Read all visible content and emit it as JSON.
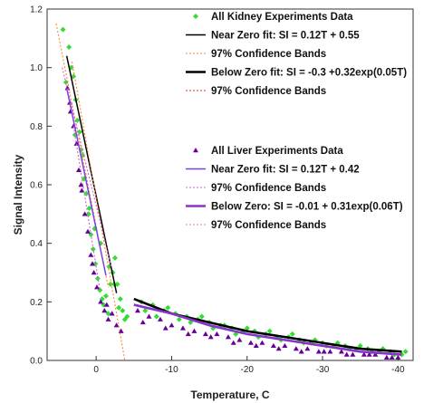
{
  "chart_data": {
    "type": "scatter",
    "title": "",
    "xlabel": "Temperature, C",
    "ylabel": "Signal Intensity",
    "x_axis_reversed": true,
    "xlim": [
      6.5,
      -42
    ],
    "ylim": [
      0,
      1.2
    ],
    "x_ticks": [
      0,
      -10,
      -20,
      -30,
      -40
    ],
    "x_tick_labels": [
      "0",
      "-10",
      "-20",
      "-30",
      "-40"
    ],
    "y_ticks": [
      0,
      0.2,
      0.4,
      0.6,
      0.8,
      1.0,
      1.2
    ],
    "y_tick_labels": [
      "0.0",
      "0.2",
      "0.4",
      "0.6",
      "0.8",
      "1.0",
      "1.2"
    ],
    "grid": false,
    "legend_placement": "top-right",
    "legend_groups": [
      {
        "entries": [
          {
            "label": "All Kidney Experiments Data",
            "style": "marker",
            "marker": "diamond",
            "color": "#33dd33"
          },
          {
            "label": "Near Zero fit: SI = 0.12T + 0.55",
            "style": "solid",
            "color": "#000000"
          },
          {
            "label": "97% Confidence Bands",
            "style": "dotted",
            "color": "#ff8833"
          },
          {
            "label": "Below Zero fit: SI = -0.3 +0.32exp(0.05T)",
            "style": "solid-thick",
            "color": "#000000"
          },
          {
            "label": "97% Confidence Bands",
            "style": "dotted",
            "color": "#e03030"
          }
        ]
      },
      {
        "entries": [
          {
            "label": "All Liver Experiments Data",
            "style": "marker",
            "marker": "triangle",
            "color": "#660099"
          },
          {
            "label": "Near Zero fit: SI = 0.12T + 0.42",
            "style": "solid",
            "color": "#7744dd"
          },
          {
            "label": "97% Confidence Bands",
            "style": "dotted",
            "color": "#cc66cc"
          },
          {
            "label": "Below Zero: SI = -0.01 + 0.31exp(0.06T)",
            "style": "solid-thick",
            "color": "#8833cc"
          },
          {
            "label": "97% Confidence Bands",
            "style": "dotted",
            "color": "#dd88aa"
          }
        ]
      }
    ],
    "series": [
      {
        "name": "All Kidney Experiments Data",
        "kind": "scatter",
        "marker": "diamond",
        "color": "#33dd33",
        "x": [
          4.4,
          3.6,
          3.3,
          3.0,
          2.7,
          2.5,
          2.2,
          2.0,
          1.6,
          1.3,
          1.0,
          0.7,
          0.4,
          0.1,
          -0.2,
          -0.5,
          -0.8,
          -1.0,
          -1.3,
          -1.6,
          -1.9,
          -2.2,
          -2.5,
          -2.8,
          -3.2,
          -3.5,
          -4.1,
          4.0,
          2.8,
          1.8,
          0.9,
          0.2,
          -0.6,
          -1.7,
          -2.4,
          -3.0,
          -3.8,
          -6.0,
          -7.5,
          -9.0,
          -10.5,
          -12.0,
          -13.5,
          -15.0,
          -16.5,
          -18.0,
          -19.5,
          -21.0,
          -22.5,
          -24.0,
          -25.5,
          -27.0,
          -28.5,
          -30.0,
          -31.5,
          -33.0,
          -34.5,
          -36.0,
          -37.5,
          -39.0,
          -40.5,
          -6.5,
          -8.0,
          -9.5,
          -11.0,
          -12.5,
          -14.0,
          -15.5,
          -17.0,
          -18.5,
          -20.0,
          -21.5,
          -23.0,
          -24.5,
          -26.0,
          -27.5,
          -29.0,
          -30.5,
          -32.0,
          -33.5,
          -35.0,
          -36.5,
          -38.0,
          -39.5,
          -41.0
        ],
        "y": [
          1.13,
          1.07,
          1.0,
          0.97,
          0.89,
          0.82,
          0.78,
          0.72,
          0.62,
          0.57,
          0.5,
          0.43,
          0.38,
          0.33,
          0.28,
          0.24,
          0.21,
          0.19,
          0.22,
          0.16,
          0.26,
          0.3,
          0.35,
          0.26,
          0.21,
          0.17,
          0.15,
          0.95,
          0.77,
          0.7,
          0.52,
          0.45,
          0.4,
          0.32,
          0.26,
          0.18,
          0.14,
          0.2,
          0.19,
          0.17,
          0.16,
          0.15,
          0.14,
          0.13,
          0.12,
          0.11,
          0.1,
          0.1,
          0.09,
          0.08,
          0.08,
          0.07,
          0.06,
          0.06,
          0.05,
          0.05,
          0.04,
          0.04,
          0.03,
          0.03,
          0.02,
          0.17,
          0.15,
          0.18,
          0.14,
          0.13,
          0.15,
          0.11,
          0.12,
          0.09,
          0.11,
          0.08,
          0.1,
          0.07,
          0.09,
          0.06,
          0.07,
          0.05,
          0.06,
          0.04,
          0.05,
          0.03,
          0.04,
          0.02,
          0.03
        ]
      },
      {
        "name": "All Liver Experiments Data",
        "kind": "scatter",
        "marker": "triangle",
        "color": "#660099",
        "x": [
          3.8,
          3.4,
          3.0,
          2.6,
          2.3,
          1.9,
          1.5,
          1.1,
          0.7,
          0.3,
          -0.1,
          -0.6,
          -1.1,
          -1.6,
          -2.1,
          -2.7,
          -3.3,
          3.5,
          2.0,
          0.5,
          -1.4,
          -5.5,
          -7.0,
          -8.5,
          -10.0,
          -11.5,
          -13.0,
          -14.5,
          -16.0,
          -17.5,
          -19.0,
          -20.5,
          -22.0,
          -23.5,
          -25.0,
          -26.5,
          -28.0,
          -29.5,
          -31.0,
          -32.5,
          -34.0,
          -35.5,
          -37.0,
          -38.5,
          -40.0,
          -6.2,
          -9.2,
          -12.2,
          -15.2,
          -18.2,
          -21.2,
          -24.2,
          -27.2,
          -30.2,
          -33.2,
          -36.2,
          -39.2
        ],
        "y": [
          0.93,
          0.85,
          0.8,
          0.74,
          0.65,
          0.58,
          0.5,
          0.44,
          0.36,
          0.3,
          0.25,
          0.2,
          0.17,
          0.14,
          0.16,
          0.12,
          0.1,
          0.88,
          0.6,
          0.33,
          0.19,
          0.17,
          0.15,
          0.14,
          0.12,
          0.11,
          0.1,
          0.09,
          0.09,
          0.08,
          0.07,
          0.06,
          0.06,
          0.05,
          0.05,
          0.04,
          0.04,
          0.03,
          0.03,
          0.03,
          0.02,
          0.02,
          0.02,
          0.01,
          0.01,
          0.13,
          0.11,
          0.09,
          0.08,
          0.06,
          0.05,
          0.04,
          0.03,
          0.03,
          0.02,
          0.02,
          0.01
        ]
      },
      {
        "name": "Near Zero fit: SI = 0.12T + 0.55",
        "kind": "line",
        "style": "solid",
        "color": "#000000",
        "x": [
          3.9,
          -2.7
        ],
        "y": [
          1.04,
          0.23
        ]
      },
      {
        "name": "97% Confidence Bands",
        "kind": "line",
        "style": "dotted",
        "color": "#ff8833",
        "x": [
          5.3,
          -1.6
        ],
        "y": [
          1.15,
          0.25
        ]
      },
      {
        "name": "97% Confidence Bands",
        "kind": "line",
        "style": "dotted",
        "color": "#ff8833",
        "x": [
          3.2,
          -3.8
        ],
        "y": [
          1.02,
          0.0
        ]
      },
      {
        "name": "Below Zero fit: SI = -0.3 +0.32exp(0.05T)",
        "kind": "line",
        "style": "solid-thick",
        "color": "#000000",
        "x": [
          -5,
          -10,
          -15,
          -20,
          -25,
          -30,
          -35,
          -40.5
        ],
        "y": [
          0.21,
          0.16,
          0.13,
          0.1,
          0.08,
          0.06,
          0.04,
          0.03
        ]
      },
      {
        "name": "Near Zero fit: SI = 0.12T + 0.42",
        "kind": "line",
        "style": "solid",
        "color": "#7744dd",
        "x": [
          3.9,
          -1.3
        ],
        "y": [
          0.93,
          0.29
        ]
      },
      {
        "name": "97% Confidence Bands",
        "kind": "line",
        "style": "dotted",
        "color": "#cc66cc",
        "x": [
          3.0,
          -0.5
        ],
        "y": [
          0.8,
          0.24
        ]
      },
      {
        "name": "97% Confidence Bands",
        "kind": "line",
        "style": "dotted",
        "color": "#cc66cc",
        "x": [
          4.5,
          -2.0
        ],
        "y": [
          1.0,
          0.32
        ]
      },
      {
        "name": "Below Zero: SI = -0.01 + 0.31exp(0.06T)",
        "kind": "line",
        "style": "solid-thick",
        "color": "#8833cc",
        "x": [
          -5,
          -10,
          -15,
          -20,
          -25,
          -30,
          -35,
          -40.5
        ],
        "y": [
          0.19,
          0.16,
          0.12,
          0.09,
          0.07,
          0.05,
          0.03,
          0.02
        ]
      }
    ]
  }
}
